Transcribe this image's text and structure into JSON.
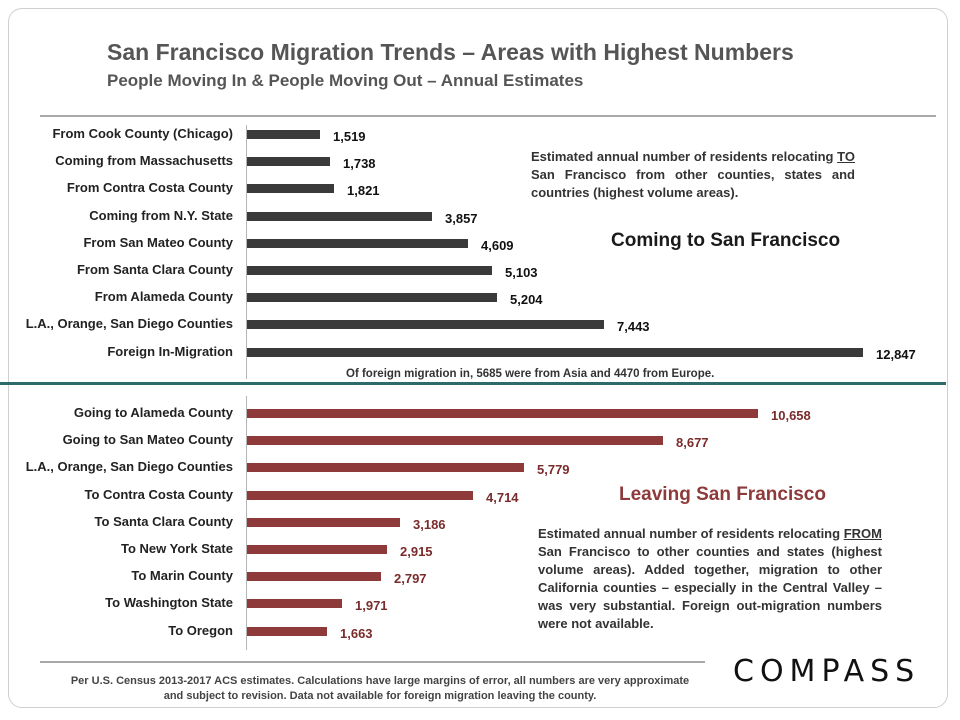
{
  "header": {
    "title": "San Francisco Migration Trends – Areas with Highest Numbers",
    "subtitle": "People Moving In & People Moving Out – Annual Estimates"
  },
  "colors": {
    "in_bar": "#3a3a3a",
    "out_bar": "#8e3a3a",
    "divider": "#2d6a69"
  },
  "chart_data": [
    {
      "type": "bar",
      "orientation": "horizontal",
      "title": "Coming to San Francisco",
      "categories": [
        "From Cook County (Chicago)",
        "Coming from Massachusetts",
        "From Contra Costa County",
        "Coming from N.Y. State",
        "From San Mateo County",
        "From Santa Clara County",
        "From Alameda County",
        "L.A., Orange, San Diego Counties",
        "Foreign In-Migration"
      ],
      "values": [
        1519,
        1738,
        1821,
        3857,
        4609,
        5103,
        5204,
        7443,
        12847
      ],
      "value_labels": [
        "1,519",
        "1,738",
        "1,821",
        "3,857",
        "4,609",
        "5,103",
        "5,204",
        "7,443",
        "12,847"
      ],
      "xlim": [
        0,
        12847
      ],
      "note_lead": "Estimated annual number of residents relocating ",
      "note_emph": "TO",
      "note_tail": " San Francisco from other counties, states and countries (highest volume areas).",
      "foreign_note": "Of foreign migration in, 5685 were from Asia and 4470 from Europe."
    },
    {
      "type": "bar",
      "orientation": "horizontal",
      "title": "Leaving San Francisco",
      "categories": [
        "Going to Alameda County",
        "Going to San Mateo County",
        "L.A., Orange, San Diego Counties",
        "To Contra Costa County",
        "To Santa Clara County",
        "To New York State",
        "To Marin County",
        "To Washington State",
        "To Oregon"
      ],
      "values": [
        10658,
        8677,
        5779,
        4714,
        3186,
        2915,
        2797,
        1971,
        1663
      ],
      "value_labels": [
        "10,658",
        "8,677",
        "5,779",
        "4,714",
        "3,186",
        "2,915",
        "2,797",
        "1,971",
        "1,663"
      ],
      "xlim": [
        0,
        12847
      ],
      "note_lead": "Estimated annual number of residents relocating ",
      "note_emph": "FROM",
      "note_tail": " San Francisco to other counties and states (highest volume areas). Added together, migration to other California counties – especially in the Central Valley – was very substantial. Foreign out-migration numbers were not available."
    }
  ],
  "footer": {
    "text": "Per U.S. Census 2013-2017 ACS estimates. Calculations have large margins of error, all numbers are very approximate and subject to revision. Data not available for foreign migration leaving the county.",
    "logo": "COMPASS"
  }
}
